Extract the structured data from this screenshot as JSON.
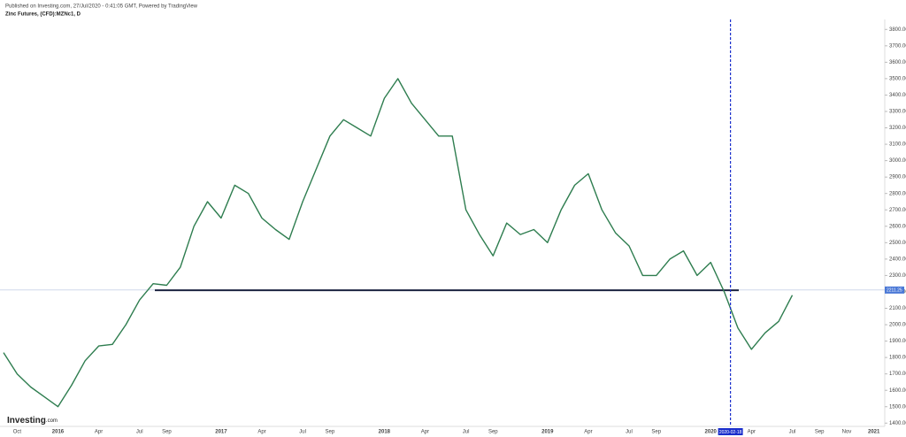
{
  "header": {
    "published": "Published on Investing.com, 27/Jul/2020 - 0:41:05 GMT, Powered by TradingView",
    "symbol": "Zinc Futures, (CFD):MZNc1, D",
    "logo": "Investing",
    "logo_suffix": ".com"
  },
  "chart_data": {
    "type": "line",
    "color": "#2e7d4f",
    "categories": [
      null,
      "Oct",
      null,
      null,
      "2016",
      null,
      null,
      "Apr",
      null,
      null,
      "Jul",
      null,
      "Sep",
      null,
      null,
      null,
      "2017",
      null,
      null,
      "Apr",
      null,
      null,
      "Jul",
      null,
      "Sep",
      null,
      null,
      null,
      "2018",
      null,
      null,
      "Apr",
      null,
      null,
      "Jul",
      null,
      "Sep",
      null,
      null,
      null,
      "2019",
      null,
      null,
      "Apr",
      null,
      null,
      "Jul",
      null,
      "Sep",
      null,
      null,
      null,
      "2020",
      null,
      null,
      "Apr",
      null,
      null,
      "Jul",
      null,
      "Sep",
      null,
      "Nov",
      null,
      "2021"
    ],
    "values": [
      1830,
      1700,
      1620,
      1560,
      1500,
      1630,
      1780,
      1870,
      1880,
      2000,
      2150,
      2250,
      2240,
      2350,
      2600,
      2750,
      2650,
      2850,
      2800,
      2650,
      2580,
      2520,
      2750,
      2950,
      3150,
      3250,
      3200,
      3150,
      3380,
      3500,
      3350,
      3250,
      3150,
      3150,
      2700,
      2550,
      2420,
      2620,
      2550,
      2580,
      2500,
      2700,
      2850,
      2920,
      2700,
      2560,
      2480,
      2300,
      2300,
      2400,
      2450,
      2300,
      2380,
      2200,
      1980,
      1850,
      1950,
      2020,
      2180,
      null,
      null,
      null,
      null,
      null,
      null
    ],
    "ylim": [
      1380,
      3850
    ],
    "yticks": [
      {
        "value": 1400,
        "label": "1400.00"
      },
      {
        "value": 1500,
        "label": "1500.00"
      },
      {
        "value": 1600,
        "label": "1600.00"
      },
      {
        "value": 1700,
        "label": "1700.00"
      },
      {
        "value": 1800,
        "label": "1800.00"
      },
      {
        "value": 1900,
        "label": "1900.00"
      },
      {
        "value": 2000,
        "label": "2000.00"
      },
      {
        "value": 2100,
        "label": "2100.00"
      },
      {
        "value": 2200,
        "label": "2200.00"
      },
      {
        "value": 2300,
        "label": "2300.00"
      },
      {
        "value": 2400,
        "label": "2400.00"
      },
      {
        "value": 2500,
        "label": "2500.00"
      },
      {
        "value": 2600,
        "label": "2600.00"
      },
      {
        "value": 2700,
        "label": "2700.00"
      },
      {
        "value": 2800,
        "label": "2800.00"
      },
      {
        "value": 2900,
        "label": "2900.00"
      },
      {
        "value": 3000,
        "label": "3000.00"
      },
      {
        "value": 3100,
        "label": "3100.00"
      },
      {
        "value": 3200,
        "label": "3200.00"
      },
      {
        "value": 3300,
        "label": "3300.00"
      },
      {
        "value": 3400,
        "label": "3400.00"
      },
      {
        "value": 3500,
        "label": "3500.00"
      },
      {
        "value": 3600,
        "label": "3600.00"
      },
      {
        "value": 3700,
        "label": "3700.00"
      },
      {
        "value": 3800,
        "label": "3800.00"
      }
    ],
    "support_level": 2210,
    "last_price": 2211.25,
    "marker_date": "2020-02-18",
    "marker_index": 53
  }
}
